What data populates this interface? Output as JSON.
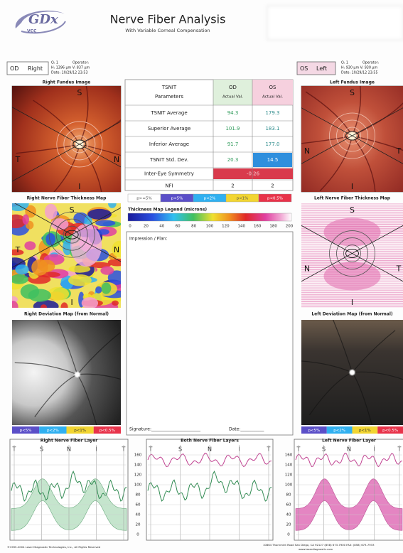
{
  "header": {
    "logo_mark": "GDx",
    "logo": "VCC",
    "title": "Nerve Fiber Analysis",
    "subtitle": "With Variable Corneal Compensation"
  },
  "right_eye": {
    "eye": "OD",
    "side": "Right",
    "info": [
      "Q: 1",
      "Operator:",
      "H: 1396 µm  V: 837 µm",
      "Date: 10/29/12 23:53"
    ],
    "fundus_title": "Right Fundus Image",
    "fundus_labels": {
      "top": "S",
      "left": "T",
      "right": "N",
      "bottom": "I"
    },
    "thickness_title": "Right Nerve Fiber Thickness Map",
    "thickness_labels": {
      "top": "S",
      "left": "T",
      "right": "N",
      "bottom": "I"
    },
    "deviation_title": "Right Deviation Map (from Normal)",
    "deviation_legend": [
      "p<5%",
      "p<2%",
      "p<1%",
      "p<0.5%"
    ],
    "graph_title": "Right Nerve Fiber Layer"
  },
  "left_eye": {
    "eye": "OS",
    "side": "Left",
    "info": [
      "Q: 1",
      "Operator:",
      "H: 930 µm  V: 930 µm",
      "Date: 10/29/12 23:55"
    ],
    "fundus_title": "Left Fundus Image",
    "fundus_labels": {
      "top": "S",
      "left": "N",
      "right": "T",
      "bottom": "I"
    },
    "thickness_title": "Left Nerve Fiber Thickness Map",
    "thickness_labels": {
      "top": "S",
      "left": "N",
      "right": "T",
      "bottom": "I"
    },
    "deviation_title": "Left Deviation Map (from Normal)",
    "deviation_legend": [
      "p<5%",
      "p<2%",
      "p<1%",
      "p<0.5%"
    ],
    "graph_title": "Left Nerve Fiber Layer"
  },
  "table": {
    "header": [
      [
        "TSNIT",
        "Parameters"
      ],
      [
        "OD",
        "Actual Val."
      ],
      [
        "OS",
        "Actual Val."
      ]
    ],
    "rows": [
      [
        "TSNIT Average",
        "94.3",
        "179.3"
      ],
      [
        "Superior Average",
        "101.9",
        "183.1"
      ],
      [
        "Inferior Average",
        "91.7",
        "177.0"
      ],
      [
        "TSNIT Std. Dev.",
        "20.3",
        "14.5"
      ],
      [
        "Inter-Eye Symmetry",
        "-0.26"
      ],
      [
        "NFI",
        "2",
        "2"
      ]
    ]
  },
  "significance_legend": [
    "p>=5%",
    "p<5%",
    "p<2%",
    "p<1%",
    "p<0.5%"
  ],
  "thickness_legend": {
    "title": "Thickness Map Legend (microns)",
    "ticks": [
      "0",
      "20",
      "40",
      "60",
      "80",
      "100",
      "120",
      "140",
      "160",
      "180",
      "200"
    ]
  },
  "impression": {
    "label": "Impression / Plan:",
    "signature": "Signature:_______________________",
    "date": "Date:___________"
  },
  "graphs": {
    "both_title": "Both Nerve Fiber Layers",
    "x_labels": [
      "T",
      "S",
      "N",
      "I",
      "T"
    ],
    "y_ticks": [
      "160",
      "140",
      "120",
      "100",
      "80",
      "60",
      "40",
      "20",
      "0"
    ]
  },
  "footer": {
    "copyright": "©1995-2004 Laser Diagnostic Technologies, Inc., All Rights Reserved",
    "address": "10864 Thornmint Road  San Diego, CA 92127  (858) 673-7900  FAX: (858) 673-7933",
    "web": "www.laserdiagnostic.com"
  }
}
